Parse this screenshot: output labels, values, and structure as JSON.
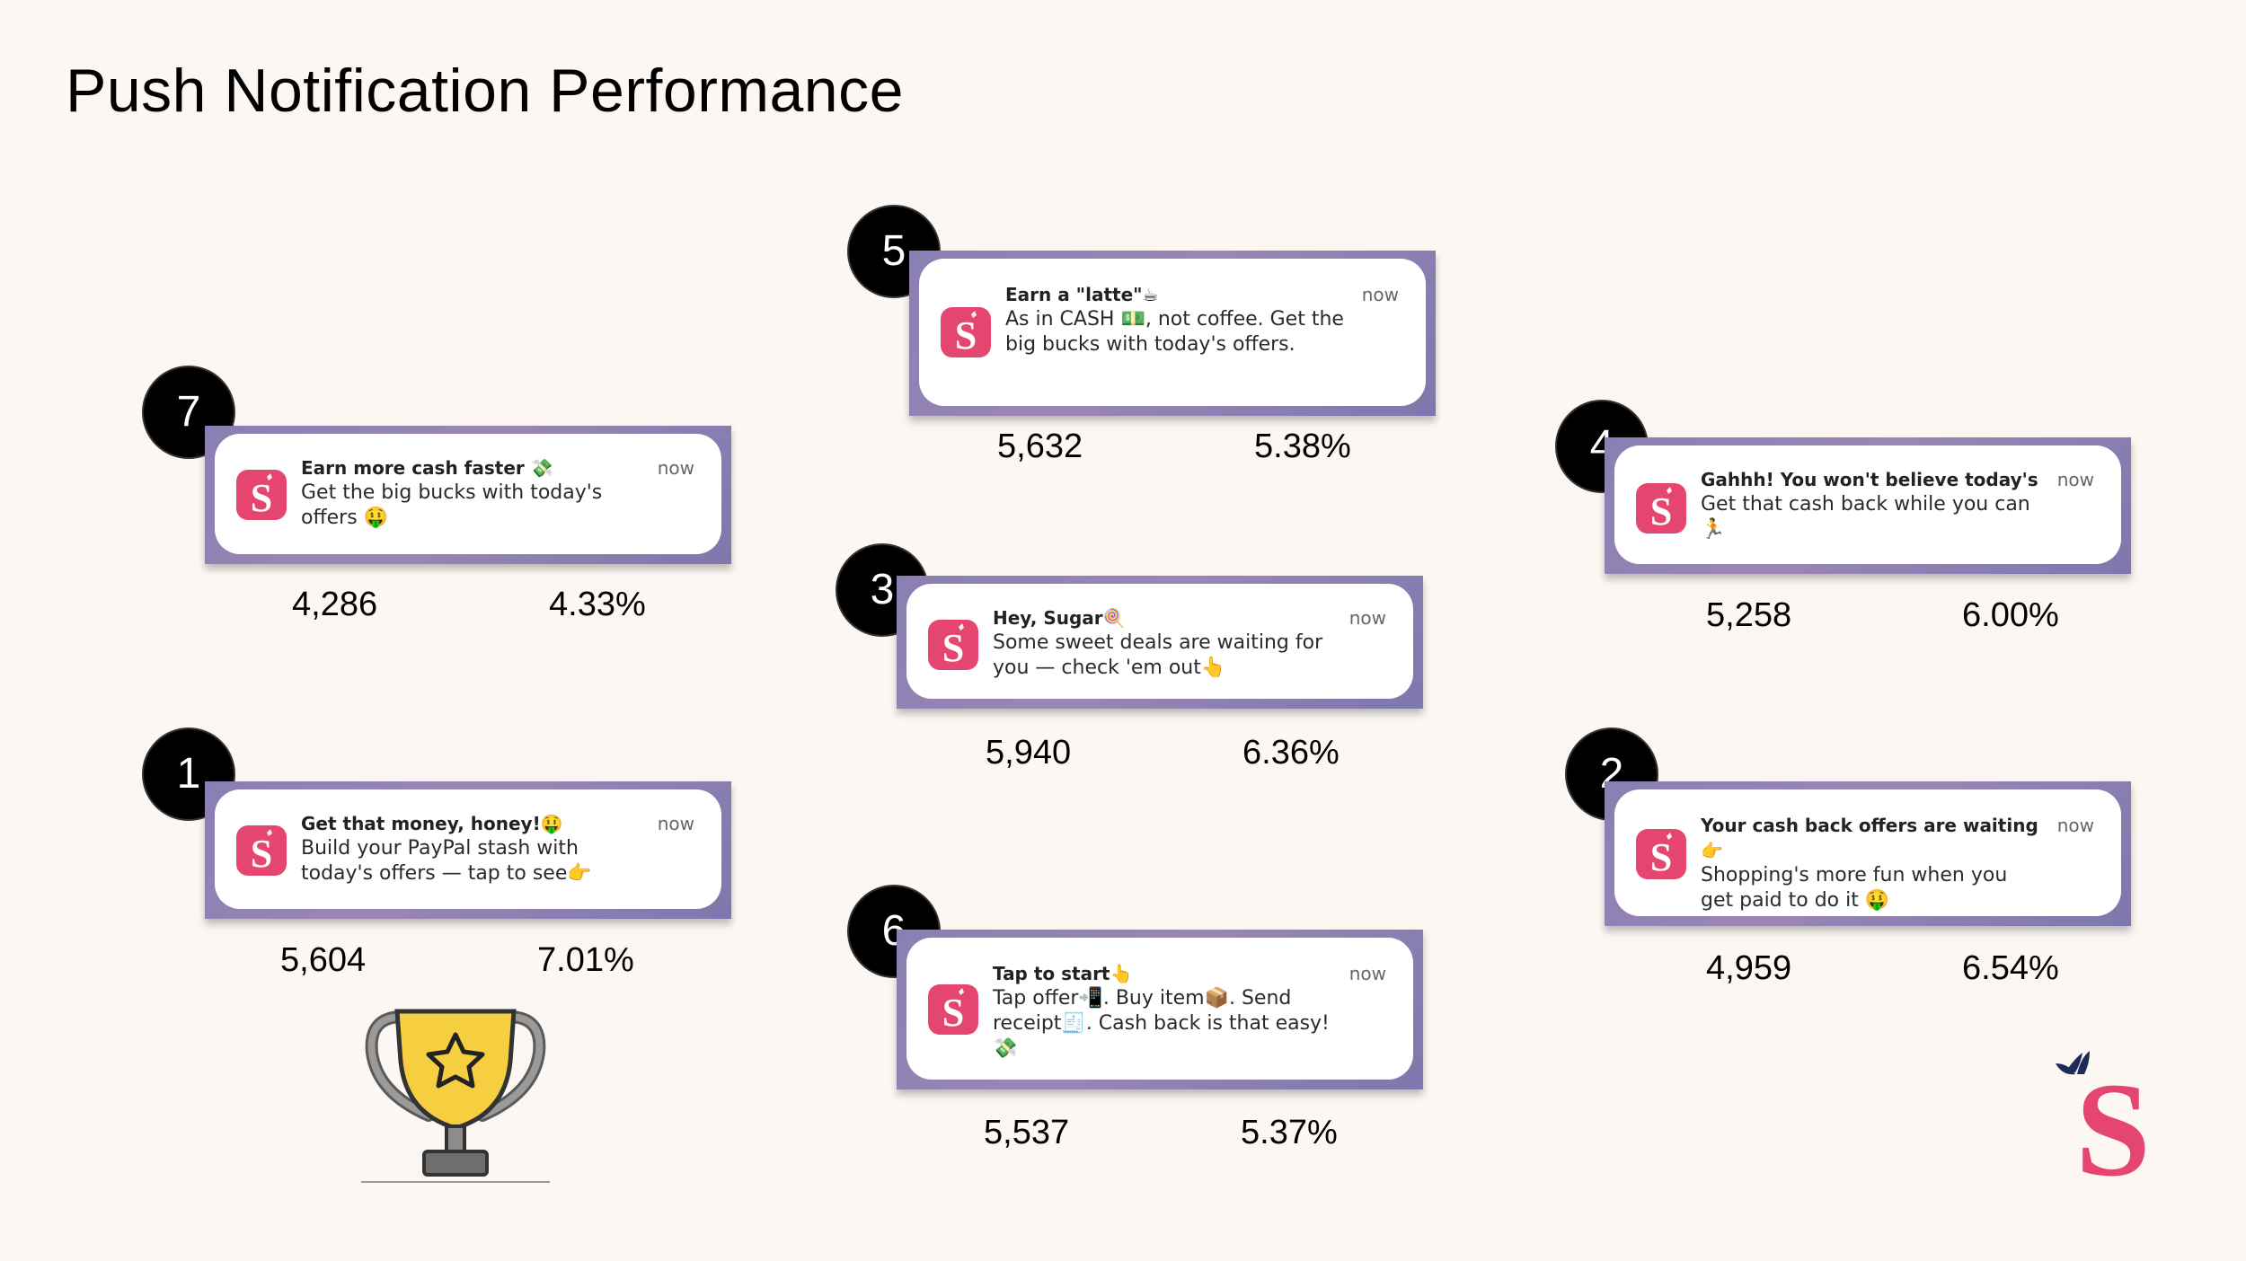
{
  "title": "Push Notification Performance",
  "time_label": "now",
  "notifications": [
    {
      "rank": "1",
      "title": "Get that money, honey!🤑",
      "body": "Build your PayPal stash with today's offers — tap to see👉",
      "sends": "5,604",
      "rate": "7.01%"
    },
    {
      "rank": "2",
      "title": "Your cash back offers are waiting👉",
      "body": "Shopping's more fun when you get paid to do it 🤑",
      "sends": "4,959",
      "rate": "6.54%"
    },
    {
      "rank": "3",
      "title": "Hey, Sugar🍭",
      "body": "Some sweet deals are waiting for you — check 'em out👆",
      "sends": "5,940",
      "rate": "6.36%"
    },
    {
      "rank": "4",
      "title": "Gahhh! You won't believe today's d...",
      "body": "Get that cash back while you can 🏃",
      "sends": "5,258",
      "rate": "6.00%"
    },
    {
      "rank": "5",
      "title": "Earn a \"latte\"☕",
      "body": "As in CASH 💵, not coffee. Get the big bucks with today's offers.",
      "sends": "5,632",
      "rate": "5.38%"
    },
    {
      "rank": "6",
      "title": "Tap to start👆",
      "body": "Tap offer📲. Buy item📦. Send receipt🧾. Cash back is that easy!💸",
      "sends": "5,537",
      "rate": "5.37%"
    },
    {
      "rank": "7",
      "title": "Earn more cash faster 💸",
      "body": "Get the big bucks with today's offers 🤑",
      "sends": "4,286",
      "rate": "4.33%"
    }
  ],
  "colors": {
    "brand_pink": "#e5466f",
    "frame_purple": "#8a7fb3",
    "trophy_gold": "#f5cf3f",
    "background": "#fcf7f3"
  },
  "icons": {
    "trophy": "trophy-icon",
    "brand_logo": "brand-logo-s-icon"
  }
}
